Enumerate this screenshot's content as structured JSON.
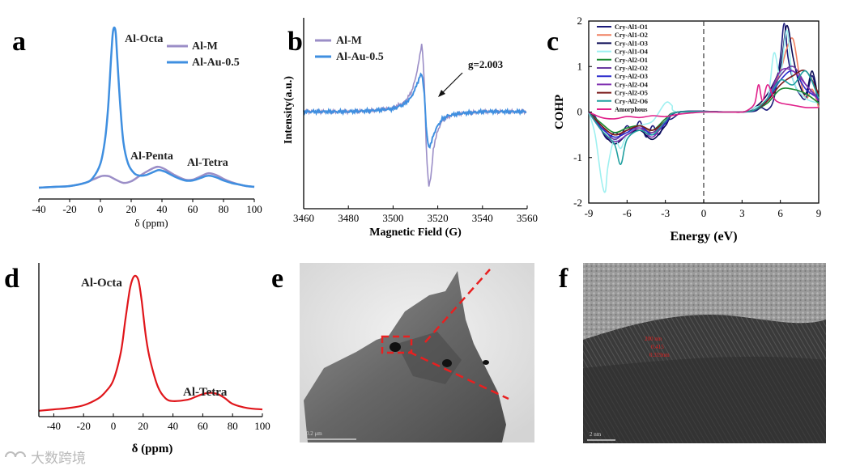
{
  "panels": {
    "a": {
      "label": "a"
    },
    "b": {
      "label": "b"
    },
    "c": {
      "label": "c"
    },
    "d": {
      "label": "d"
    },
    "e": {
      "label": "e",
      "scale_bar": "0.2 μm"
    },
    "f": {
      "label": "f",
      "scale_bar": "2 nm",
      "lattice_annotation": [
        "200 nm",
        "0.415",
        "0.319nm"
      ]
    }
  },
  "watermark": {
    "text": "大数跨境"
  },
  "colors": {
    "al_m": "#9b8ec7",
    "al_au": "#3f8fe0",
    "panel_d": "#e0161b"
  },
  "chart_data": [
    {
      "id": "a",
      "type": "line",
      "title": "",
      "xlabel": "δ (ppm)",
      "ylabel": "",
      "xlim": [
        -40,
        100
      ],
      "xticks": [
        -40,
        -20,
        0,
        20,
        40,
        60,
        80,
        100
      ],
      "legend": [
        "Al-M",
        "Al-Au-0.5"
      ],
      "annotations": [
        "Al-Octa",
        "Al-Penta",
        "Al-Tetra"
      ],
      "series": [
        {
          "name": "Al-M",
          "color": "#9b8ec7",
          "x": [
            -40,
            -30,
            -20,
            -10,
            -5,
            0,
            3,
            6,
            10,
            15,
            20,
            25,
            30,
            35,
            38,
            42,
            48,
            55,
            60,
            65,
            70,
            75,
            80,
            85,
            90,
            95,
            100
          ],
          "y": [
            0.0,
            0.005,
            0.01,
            0.03,
            0.05,
            0.07,
            0.075,
            0.07,
            0.05,
            0.03,
            0.04,
            0.07,
            0.1,
            0.125,
            0.13,
            0.115,
            0.08,
            0.05,
            0.05,
            0.07,
            0.09,
            0.08,
            0.055,
            0.035,
            0.02,
            0.01,
            0.005
          ]
        },
        {
          "name": "Al-Au-0.5",
          "color": "#3f8fe0",
          "x": [
            -40,
            -30,
            -20,
            -10,
            -5,
            0,
            3,
            5,
            7,
            8,
            9,
            10,
            11,
            13,
            15,
            18,
            22,
            26,
            30,
            35,
            38,
            42,
            48,
            55,
            60,
            65,
            70,
            75,
            80,
            85,
            90,
            95,
            100
          ],
          "y": [
            0.0,
            0.005,
            0.01,
            0.03,
            0.06,
            0.15,
            0.3,
            0.5,
            0.82,
            0.96,
            1.0,
            0.96,
            0.8,
            0.5,
            0.28,
            0.15,
            0.09,
            0.075,
            0.08,
            0.1,
            0.11,
            0.1,
            0.07,
            0.045,
            0.045,
            0.06,
            0.075,
            0.065,
            0.045,
            0.03,
            0.02,
            0.01,
            0.005
          ]
        }
      ]
    },
    {
      "id": "b",
      "type": "line",
      "title": "",
      "xlabel": "Magnetic Field (G)",
      "ylabel": "Intensity(a.u.)",
      "xlim": [
        3460,
        3560
      ],
      "xticks": [
        3460,
        3480,
        3500,
        3520,
        3540,
        3560
      ],
      "legend": [
        "Al-M",
        "Al-Au-0.5"
      ],
      "annotations": [
        "g=2.003"
      ],
      "series": [
        {
          "name": "Al-M",
          "color": "#9b8ec7",
          "x": [
            3460,
            3480,
            3490,
            3500,
            3505,
            3508,
            3510,
            3512,
            3513,
            3514,
            3515,
            3516,
            3517,
            3518,
            3520,
            3522,
            3525,
            3530,
            3540,
            3560
          ],
          "y": [
            0,
            0,
            0.01,
            0.04,
            0.1,
            0.2,
            0.35,
            0.6,
            0.75,
            0.3,
            -0.5,
            -0.8,
            -0.7,
            -0.4,
            -0.2,
            -0.1,
            -0.05,
            -0.02,
            0,
            0
          ]
        },
        {
          "name": "Al-Au-0.5",
          "color": "#3f8fe0",
          "x": [
            3460,
            3480,
            3490,
            3500,
            3505,
            3508,
            3510,
            3512,
            3513,
            3514,
            3515,
            3516,
            3517,
            3518,
            3520,
            3522,
            3525,
            3530,
            3540,
            3560
          ],
          "y": [
            0,
            0,
            0.01,
            0.03,
            0.08,
            0.15,
            0.25,
            0.38,
            0.4,
            0.2,
            -0.25,
            -0.38,
            -0.35,
            -0.25,
            -0.15,
            -0.08,
            -0.04,
            -0.02,
            0,
            0
          ]
        }
      ]
    },
    {
      "id": "c",
      "type": "line",
      "title": "",
      "xlabel": "Energy (eV)",
      "ylabel": "COHP",
      "xlim": [
        -9,
        9
      ],
      "ylim": [
        -2,
        2
      ],
      "xticks": [
        -9,
        -6,
        -3,
        0,
        3,
        6,
        9
      ],
      "yticks": [
        -2,
        -1,
        0,
        1,
        2
      ],
      "legend": [
        "Cry-Al1-O1",
        "Cry-Al1-O2",
        "Cry-Al1-O3",
        "Cry-Al1-O4",
        "Cry-Al2-O1",
        "Cry-Al2-O2",
        "Cry-Al2-O3",
        "Cry-Al2-O4",
        "Cry-Al2-O5",
        "Cry-Al2-O6",
        "Amorphous"
      ],
      "series": [
        {
          "name": "Cry-Al1-O1",
          "color": "#1a1a7a",
          "x": [
            -9,
            -8.5,
            -8,
            -7.5,
            -7,
            -6.5,
            -6,
            -5.5,
            -5,
            -4.5,
            -4,
            -3.5,
            -3,
            -2.5,
            -2,
            -1.5,
            2,
            3,
            4,
            4.5,
            5,
            5.5,
            6,
            6.3,
            6.6,
            7,
            7.5,
            8,
            8.5,
            9
          ],
          "y": [
            0,
            -0.1,
            -0.4,
            -0.6,
            -0.45,
            -0.5,
            -0.3,
            -0.45,
            -0.2,
            -0.55,
            -0.3,
            -0.5,
            -0.2,
            -0.15,
            -0.05,
            0,
            0,
            0,
            0.02,
            0.1,
            0.05,
            0.3,
            1.2,
            1.95,
            1.2,
            0.7,
            0.4,
            0.3,
            0.8,
            0.1
          ]
        },
        {
          "name": "Cry-Al1-O2",
          "color": "#f08060",
          "x": [
            -9,
            -8,
            -7,
            -6,
            -5,
            -4,
            -3,
            -2,
            2,
            3,
            4,
            5,
            6,
            6.5,
            7,
            7.5,
            8,
            8.5,
            9
          ],
          "y": [
            0,
            -0.3,
            -0.5,
            -0.4,
            -0.3,
            -0.45,
            -0.2,
            0,
            0,
            0,
            0.1,
            0.3,
            0.9,
            1.4,
            1.6,
            0.8,
            0.3,
            0.5,
            0.1
          ]
        },
        {
          "name": "Cry-Al1-O3",
          "color": "#0a0a55",
          "x": [
            -9,
            -8,
            -7,
            -6,
            -5,
            -4,
            -3,
            -2,
            2,
            3,
            4,
            5,
            6,
            6.5,
            7,
            7.5,
            8,
            8.5,
            9
          ],
          "y": [
            0,
            -0.4,
            -0.7,
            -0.5,
            -0.4,
            -0.6,
            -0.3,
            0,
            0,
            0,
            0.1,
            0.4,
            1.0,
            1.9,
            1.2,
            0.6,
            0.4,
            0.9,
            0.2
          ]
        },
        {
          "name": "Cry-Al1-O4",
          "color": "#9ef0f0",
          "x": [
            -9,
            -8.5,
            -8,
            -7.7,
            -7.5,
            -7,
            -6.5,
            -6,
            -5,
            -4,
            -3,
            -2.5,
            -2,
            2,
            3,
            4,
            5,
            5.5,
            6,
            6.5,
            7,
            8,
            9
          ],
          "y": [
            0,
            -0.5,
            -1.5,
            -1.75,
            -1.2,
            -0.6,
            -0.8,
            -0.5,
            -0.3,
            -0.2,
            0.2,
            0.15,
            0,
            0,
            0,
            0.1,
            0.3,
            1.3,
            0.8,
            1.8,
            0.7,
            0.3,
            0.2
          ]
        },
        {
          "name": "Cry-Al2-O1",
          "color": "#1a8a30",
          "x": [
            -9,
            -8,
            -7,
            -6,
            -5,
            -4,
            -3,
            -2,
            2,
            3,
            4,
            5,
            6,
            7,
            8,
            9
          ],
          "y": [
            0,
            -0.25,
            -0.45,
            -0.35,
            -0.3,
            -0.4,
            -0.15,
            0,
            0,
            0,
            0.05,
            0.2,
            0.5,
            0.5,
            0.4,
            0.2
          ]
        },
        {
          "name": "Cry-Al2-O2",
          "color": "#6a3aa0",
          "x": [
            -9,
            -8,
            -7,
            -6,
            -5,
            -4,
            -3,
            -2,
            2,
            3,
            4,
            5,
            6,
            7,
            8,
            9
          ],
          "y": [
            0,
            -0.3,
            -0.6,
            -0.4,
            -0.35,
            -0.45,
            -0.2,
            0,
            0,
            0,
            0.05,
            0.3,
            0.8,
            1.0,
            0.6,
            0.3
          ]
        },
        {
          "name": "Cry-Al2-O3",
          "color": "#2a2acc",
          "x": [
            -9,
            -8,
            -7,
            -6,
            -5,
            -4,
            -3,
            -2,
            2,
            3,
            4,
            5,
            6,
            7,
            8,
            9
          ],
          "y": [
            0,
            -0.35,
            -0.55,
            -0.45,
            -0.3,
            -0.5,
            -0.25,
            0,
            0,
            0,
            0.05,
            0.25,
            0.7,
            0.9,
            0.5,
            0.3
          ]
        },
        {
          "name": "Cry-Al2-O4",
          "color": "#8030b0",
          "x": [
            -9,
            -8,
            -7,
            -6,
            -5,
            -4,
            -3,
            -2,
            2,
            3,
            4,
            5,
            6,
            7,
            8,
            9
          ],
          "y": [
            0,
            -0.4,
            -0.65,
            -0.5,
            -0.35,
            -0.55,
            -0.2,
            0,
            0,
            0,
            0.05,
            0.3,
            0.9,
            0.9,
            0.6,
            0.25
          ]
        },
        {
          "name": "Cry-Al2-O5",
          "color": "#7a1a1a",
          "x": [
            -9,
            -8,
            -7,
            -6,
            -5,
            -4,
            -3,
            -2,
            2,
            3,
            4,
            5,
            6,
            7,
            8,
            9
          ],
          "y": [
            0,
            -0.3,
            -0.5,
            -0.4,
            -0.3,
            -0.4,
            -0.2,
            0,
            0,
            0,
            0.05,
            0.25,
            0.6,
            0.8,
            0.9,
            0.4
          ]
        },
        {
          "name": "Cry-Al2-O6",
          "color": "#20a0a0",
          "x": [
            -9,
            -8,
            -7,
            -6.5,
            -6,
            -5,
            -4,
            -3,
            -2,
            2,
            3,
            4,
            5,
            6,
            7,
            8,
            9
          ],
          "y": [
            0,
            -0.4,
            -0.7,
            -1.15,
            -0.6,
            -0.4,
            -0.5,
            -0.2,
            0,
            0,
            0,
            0.05,
            0.3,
            0.7,
            0.6,
            0.9,
            0.3
          ]
        },
        {
          "name": "Amorphous",
          "color": "#e0208a",
          "x": [
            -9,
            -8,
            -7,
            -6,
            -5,
            -4,
            -3,
            -2,
            -1,
            0,
            1,
            2,
            3,
            3.5,
            4,
            4.3,
            4.6,
            5,
            5.5,
            6,
            7,
            8,
            9
          ],
          "y": [
            0,
            -0.12,
            -0.15,
            -0.1,
            -0.12,
            -0.08,
            -0.1,
            -0.05,
            -0.02,
            0,
            0,
            0,
            0,
            0.05,
            0.2,
            0.6,
            0.25,
            0.6,
            0.3,
            0.2,
            0.15,
            0.1,
            0.1
          ]
        }
      ]
    },
    {
      "id": "d",
      "type": "line",
      "title": "",
      "xlabel": "δ (ppm)",
      "ylabel": "",
      "xlim": [
        -50,
        100
      ],
      "xticks": [
        -40,
        -20,
        0,
        20,
        40,
        60,
        80,
        100
      ],
      "annotations": [
        "Al-Octa",
        "Al-Tetra"
      ],
      "series": [
        {
          "name": "Al-M",
          "color": "#e0161b",
          "x": [
            -50,
            -40,
            -30,
            -20,
            -10,
            -5,
            0,
            5,
            8,
            11,
            13,
            15,
            17,
            19,
            22,
            25,
            30,
            35,
            40,
            50,
            55,
            60,
            65,
            70,
            75,
            80,
            90,
            100
          ],
          "y": [
            0.03,
            0.04,
            0.05,
            0.07,
            0.12,
            0.17,
            0.25,
            0.45,
            0.68,
            0.9,
            0.98,
            1.0,
            0.96,
            0.82,
            0.55,
            0.38,
            0.2,
            0.12,
            0.1,
            0.11,
            0.13,
            0.15,
            0.16,
            0.15,
            0.12,
            0.08,
            0.05,
            0.04
          ]
        }
      ]
    }
  ]
}
